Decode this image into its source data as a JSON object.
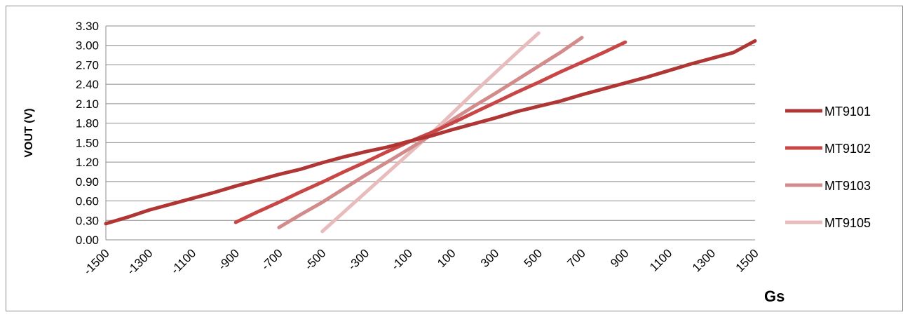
{
  "chart_data": {
    "type": "line",
    "title": "",
    "xlabel": "Gs",
    "ylabel": "VOUT (V)",
    "x_ticks": [
      "-1500",
      "-1300",
      "-1100",
      "-900",
      "-700",
      "-500",
      "-300",
      "-100",
      "100",
      "300",
      "500",
      "700",
      "900",
      "1100",
      "1300",
      "1500"
    ],
    "x_range": [
      -1500,
      1500
    ],
    "ylim": [
      0,
      3.3
    ],
    "y_ticks": [
      "0.00",
      "0.30",
      "0.60",
      "0.90",
      "1.20",
      "1.50",
      "1.80",
      "2.10",
      "2.40",
      "2.70",
      "3.00",
      "3.30"
    ],
    "grid": "horizontal",
    "legend_position": "right",
    "series": [
      {
        "name": "MT9101",
        "color": "#b03535",
        "x": [
          -1500,
          -1400,
          -1300,
          -1200,
          -1100,
          -1000,
          -900,
          -800,
          -700,
          -600,
          -500,
          -400,
          -300,
          -200,
          -100,
          0,
          100,
          200,
          300,
          400,
          500,
          600,
          700,
          800,
          900,
          1000,
          1100,
          1200,
          1300,
          1400,
          1500
        ],
        "y": [
          0.25,
          0.35,
          0.46,
          0.55,
          0.64,
          0.73,
          0.83,
          0.92,
          1.01,
          1.09,
          1.19,
          1.28,
          1.36,
          1.43,
          1.52,
          1.6,
          1.7,
          1.79,
          1.88,
          1.98,
          2.06,
          2.14,
          2.24,
          2.33,
          2.42,
          2.51,
          2.61,
          2.71,
          2.8,
          2.89,
          3.07
        ]
      },
      {
        "name": "MT9102",
        "color": "#c94646",
        "x": [
          -900,
          -800,
          -700,
          -600,
          -500,
          -400,
          -300,
          -200,
          -100,
          0,
          100,
          200,
          300,
          400,
          500,
          600,
          700,
          800,
          900
        ],
        "y": [
          0.27,
          0.43,
          0.58,
          0.74,
          0.89,
          1.05,
          1.2,
          1.36,
          1.51,
          1.65,
          1.8,
          1.96,
          2.12,
          2.28,
          2.43,
          2.59,
          2.74,
          2.89,
          3.05
        ]
      },
      {
        "name": "MT9103",
        "color": "#d28a8a",
        "x": [
          -700,
          -600,
          -500,
          -400,
          -300,
          -200,
          -100,
          0,
          100,
          200,
          300,
          400,
          500,
          600,
          700
        ],
        "y": [
          0.19,
          0.39,
          0.58,
          0.79,
          1.0,
          1.2,
          1.4,
          1.61,
          1.85,
          2.06,
          2.26,
          2.47,
          2.68,
          2.89,
          3.12
        ]
      },
      {
        "name": "MT9105",
        "color": "#e8bcbc",
        "x": [
          -500,
          -400,
          -300,
          -200,
          -100,
          0,
          100,
          200,
          300,
          400,
          500
        ],
        "y": [
          0.13,
          0.43,
          0.73,
          1.03,
          1.33,
          1.63,
          1.95,
          2.27,
          2.58,
          2.89,
          3.19
        ]
      }
    ]
  }
}
